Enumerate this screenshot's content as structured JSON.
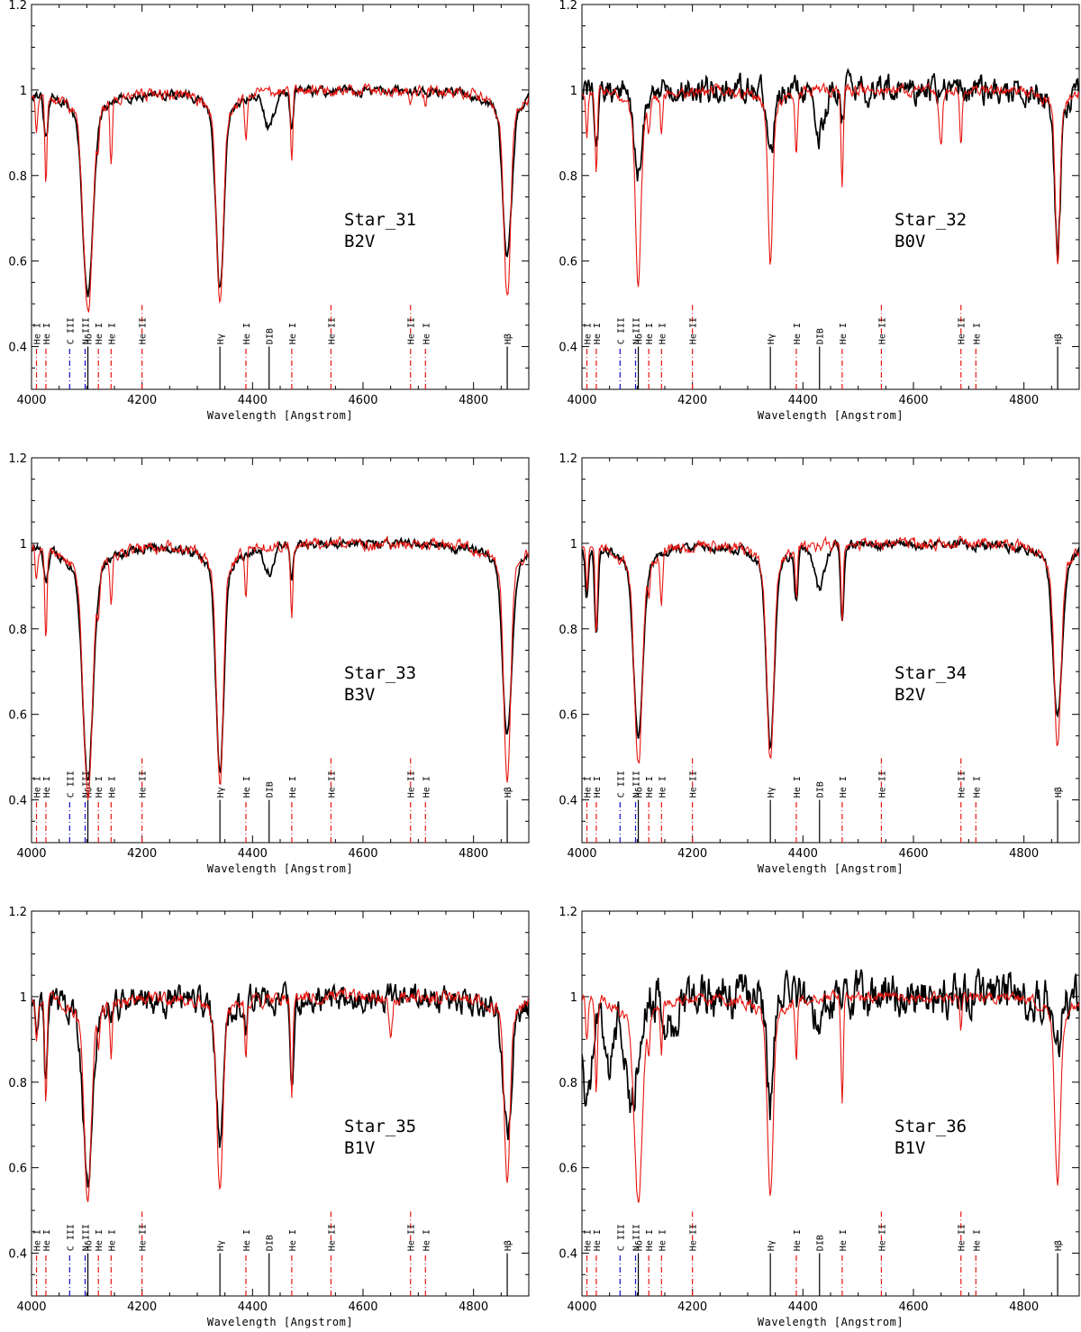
{
  "chart_data": [
    {
      "type": "line",
      "star_name": "Star_31",
      "spectral_type": "B2V",
      "xlabel": "Wavelength [Angstrom]",
      "ylabel": "",
      "xlim": [
        4000,
        4900
      ],
      "ylim": [
        0.3,
        1.2
      ],
      "xticks": [
        "4000",
        "4200",
        "4400",
        "4600",
        "4800"
      ],
      "yticks": [
        "0.4",
        "0.6",
        "0.8",
        "1",
        "1.2"
      ],
      "series": [
        {
          "color": "#000000",
          "noise": 0.01,
          "seed": 31,
          "dips": [
            [
              4026,
              0.9,
              4
            ],
            [
              4102,
              0.59,
              9
            ],
            [
              4341,
              0.61,
              7
            ],
            [
              4430,
              0.92,
              9
            ],
            [
              4471,
              0.91,
              3
            ],
            [
              4861,
              0.68,
              8
            ]
          ]
        },
        {
          "color": "#e8140f",
          "noise": 0.012,
          "seed": 131,
          "dips": [
            [
              4009,
              0.9,
              2
            ],
            [
              4026,
              0.79,
              2
            ],
            [
              4102,
              0.56,
              8
            ],
            [
              4121,
              0.93,
              2
            ],
            [
              4144,
              0.86,
              2
            ],
            [
              4341,
              0.58,
              6
            ],
            [
              4388,
              0.89,
              2
            ],
            [
              4471,
              0.84,
              2
            ],
            [
              4686,
              0.96,
              2
            ],
            [
              4713,
              0.96,
              2
            ],
            [
              4861,
              0.59,
              6
            ]
          ]
        }
      ]
    },
    {
      "type": "line",
      "star_name": "Star_32",
      "spectral_type": "B0V",
      "xlabel": "Wavelength [Angstrom]",
      "ylabel": "",
      "xlim": [
        4000,
        4900
      ],
      "ylim": [
        0.3,
        1.2
      ],
      "xticks": [
        "4000",
        "4200",
        "4400",
        "4600",
        "4800"
      ],
      "yticks": [
        "0.4",
        "0.6",
        "0.8",
        "1",
        "1.2"
      ],
      "series": [
        {
          "color": "#000000",
          "noise": 0.028,
          "seed": 32,
          "dips": [
            [
              4026,
              0.85,
              3
            ],
            [
              4102,
              0.8,
              8
            ],
            [
              4341,
              0.84,
              6
            ],
            [
              4430,
              0.9,
              10
            ],
            [
              4471,
              0.93,
              3
            ],
            [
              4861,
              0.68,
              5
            ]
          ]
        },
        {
          "color": "#e8140f",
          "noise": 0.012,
          "seed": 132,
          "dips": [
            [
              4009,
              0.9,
              2
            ],
            [
              4026,
              0.81,
              2
            ],
            [
              4102,
              0.62,
              5
            ],
            [
              4121,
              0.93,
              2
            ],
            [
              4144,
              0.91,
              2
            ],
            [
              4341,
              0.65,
              4
            ],
            [
              4388,
              0.86,
              2
            ],
            [
              4471,
              0.78,
              2
            ],
            [
              4650,
              0.88,
              3
            ],
            [
              4686,
              0.88,
              2
            ],
            [
              4861,
              0.65,
              4
            ]
          ]
        }
      ]
    },
    {
      "type": "line",
      "star_name": "Star_33",
      "spectral_type": "B3V",
      "xlabel": "Wavelength [Angstrom]",
      "ylabel": "",
      "xlim": [
        4000,
        4900
      ],
      "ylim": [
        0.3,
        1.2
      ],
      "xticks": [
        "4000",
        "4200",
        "4400",
        "4600",
        "4800"
      ],
      "yticks": [
        "0.4",
        "0.6",
        "0.8",
        "1",
        "1.2"
      ],
      "series": [
        {
          "color": "#000000",
          "noise": 0.01,
          "seed": 33,
          "dips": [
            [
              4026,
              0.92,
              4
            ],
            [
              4102,
              0.53,
              9
            ],
            [
              4341,
              0.55,
              7
            ],
            [
              4430,
              0.94,
              8
            ],
            [
              4471,
              0.92,
              3
            ],
            [
              4861,
              0.62,
              8
            ]
          ]
        },
        {
          "color": "#e8140f",
          "noise": 0.012,
          "seed": 133,
          "dips": [
            [
              4009,
              0.93,
              2
            ],
            [
              4026,
              0.8,
              2
            ],
            [
              4102,
              0.5,
              8
            ],
            [
              4121,
              0.93,
              2
            ],
            [
              4144,
              0.88,
              2
            ],
            [
              4341,
              0.53,
              6
            ],
            [
              4388,
              0.88,
              2
            ],
            [
              4471,
              0.84,
              2
            ],
            [
              4861,
              0.54,
              6
            ]
          ]
        }
      ]
    },
    {
      "type": "line",
      "star_name": "Star_34",
      "spectral_type": "B2V",
      "xlabel": "Wavelength [Angstrom]",
      "ylabel": "",
      "xlim": [
        4000,
        4900
      ],
      "ylim": [
        0.3,
        1.2
      ],
      "xticks": [
        "4000",
        "4200",
        "4400",
        "4600",
        "4800"
      ],
      "yticks": [
        "0.4",
        "0.6",
        "0.8",
        "1",
        "1.2"
      ],
      "series": [
        {
          "color": "#000000",
          "noise": 0.01,
          "seed": 34,
          "dips": [
            [
              4009,
              0.88,
              3
            ],
            [
              4026,
              0.79,
              3
            ],
            [
              4102,
              0.61,
              8
            ],
            [
              4341,
              0.6,
              7
            ],
            [
              4388,
              0.88,
              3
            ],
            [
              4430,
              0.9,
              9
            ],
            [
              4471,
              0.82,
              3
            ],
            [
              4861,
              0.66,
              8
            ]
          ]
        },
        {
          "color": "#e8140f",
          "noise": 0.012,
          "seed": 134,
          "dips": [
            [
              4009,
              0.9,
              2
            ],
            [
              4026,
              0.8,
              2
            ],
            [
              4102,
              0.56,
              7
            ],
            [
              4121,
              0.93,
              2
            ],
            [
              4144,
              0.87,
              2
            ],
            [
              4341,
              0.57,
              6
            ],
            [
              4388,
              0.89,
              2
            ],
            [
              4471,
              0.83,
              2
            ],
            [
              4861,
              0.6,
              6
            ]
          ]
        }
      ]
    },
    {
      "type": "line",
      "star_name": "Star_35",
      "spectral_type": "B1V",
      "xlabel": "Wavelength [Angstrom]",
      "ylabel": "",
      "xlim": [
        4000,
        4900
      ],
      "ylim": [
        0.3,
        1.2
      ],
      "xticks": [
        "4000",
        "4200",
        "4400",
        "4600",
        "4800"
      ],
      "yticks": [
        "0.4",
        "0.6",
        "0.8",
        "1",
        "1.2"
      ],
      "series": [
        {
          "color": "#000000",
          "noise": 0.03,
          "seed": 35,
          "dips": [
            [
              4009,
              0.9,
              3
            ],
            [
              4026,
              0.8,
              3
            ],
            [
              4102,
              0.62,
              8
            ],
            [
              4341,
              0.71,
              6
            ],
            [
              4388,
              0.92,
              3
            ],
            [
              4471,
              0.8,
              3
            ],
            [
              4861,
              0.73,
              7
            ]
          ]
        },
        {
          "color": "#e8140f",
          "noise": 0.014,
          "seed": 135,
          "dips": [
            [
              4009,
              0.9,
              2
            ],
            [
              4026,
              0.76,
              2
            ],
            [
              4102,
              0.59,
              6
            ],
            [
              4121,
              0.92,
              2
            ],
            [
              4144,
              0.88,
              2
            ],
            [
              4341,
              0.61,
              5
            ],
            [
              4388,
              0.88,
              2
            ],
            [
              4471,
              0.78,
              2
            ],
            [
              4650,
              0.92,
              3
            ],
            [
              4861,
              0.63,
              5
            ]
          ]
        }
      ]
    },
    {
      "type": "line",
      "star_name": "Star_36",
      "spectral_type": "B1V",
      "xlabel": "Wavelength [Angstrom]",
      "ylabel": "",
      "xlim": [
        4000,
        4900
      ],
      "ylim": [
        0.3,
        1.2
      ],
      "xticks": [
        "4000",
        "4200",
        "4400",
        "4600",
        "4800"
      ],
      "yticks": [
        "0.4",
        "0.6",
        "0.8",
        "1",
        "1.2"
      ],
      "series": [
        {
          "color": "#000000",
          "noise": 0.045,
          "seed": 36,
          "dips": [
            [
              4010,
              0.75,
              8
            ],
            [
              4050,
              0.85,
              10
            ],
            [
              4090,
              0.75,
              10
            ],
            [
              4160,
              0.92,
              10
            ],
            [
              4341,
              0.75,
              6
            ],
            [
              4430,
              0.92,
              8
            ],
            [
              4861,
              0.86,
              6
            ]
          ]
        },
        {
          "color": "#e8140f",
          "noise": 0.012,
          "seed": 136,
          "dips": [
            [
              4009,
              0.9,
              2
            ],
            [
              4026,
              0.78,
              2
            ],
            [
              4102,
              0.59,
              7
            ],
            [
              4121,
              0.92,
              2
            ],
            [
              4144,
              0.89,
              2
            ],
            [
              4341,
              0.6,
              5
            ],
            [
              4388,
              0.86,
              2
            ],
            [
              4471,
              0.77,
              2
            ],
            [
              4686,
              0.92,
              2
            ],
            [
              4861,
              0.63,
              5
            ]
          ]
        }
      ]
    }
  ],
  "line_markers": [
    {
      "wl": 4009,
      "label": "He I",
      "color": "#e8140f",
      "tall": false
    },
    {
      "wl": 4026,
      "label": "He I",
      "color": "#e8140f",
      "tall": false
    },
    {
      "wl": 4069,
      "label": "C III",
      "color": "#1010c8",
      "tall": false
    },
    {
      "wl": 4097,
      "label": "N III",
      "color": "#1010c8",
      "tall": false
    },
    {
      "wl": 4102,
      "label": "Hδ",
      "color": "#000000",
      "tall": false
    },
    {
      "wl": 4121,
      "label": "He I",
      "color": "#e8140f",
      "tall": false
    },
    {
      "wl": 4144,
      "label": "He I",
      "color": "#e8140f",
      "tall": false
    },
    {
      "wl": 4200,
      "label": "He II",
      "color": "#e8140f",
      "tall": true
    },
    {
      "wl": 4341,
      "label": "Hγ",
      "color": "#000000",
      "tall": false
    },
    {
      "wl": 4388,
      "label": "He I",
      "color": "#e8140f",
      "tall": false
    },
    {
      "wl": 4430,
      "label": "DIB",
      "color": "#000000",
      "tall": false
    },
    {
      "wl": 4471,
      "label": "He I",
      "color": "#e8140f",
      "tall": false
    },
    {
      "wl": 4542,
      "label": "He II",
      "color": "#e8140f",
      "tall": true
    },
    {
      "wl": 4686,
      "label": "He II",
      "color": "#e8140f",
      "tall": true
    },
    {
      "wl": 4713,
      "label": "He I",
      "color": "#e8140f",
      "tall": false
    },
    {
      "wl": 4861,
      "label": "Hβ",
      "color": "#000000",
      "tall": false
    }
  ]
}
